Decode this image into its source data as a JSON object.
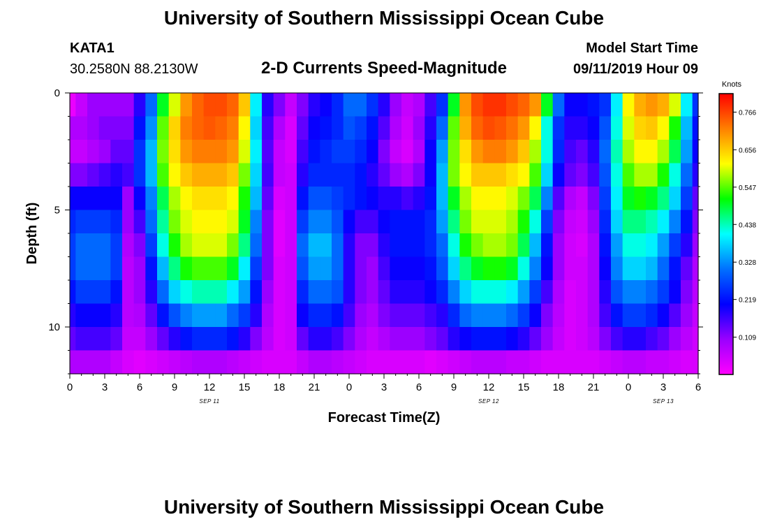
{
  "header": {
    "title": "University of Southern Mississippi Ocean Cube",
    "station_id": "KATA1",
    "coordinates": "30.2580N 88.2130W",
    "plot_title": "2-D Currents Speed-Magnitude",
    "model_start_label": "Model Start Time",
    "model_start_value": "09/11/2019 Hour 09"
  },
  "footer": {
    "title": "University of Southern Mississippi Ocean Cube"
  },
  "colors": {
    "background": "#ffffff",
    "axis": "#000000"
  },
  "chart_data": {
    "type": "heatmap",
    "title": "2-D Currents Speed-Magnitude",
    "xlabel": "Forecast Time(Z)",
    "ylabel": "Depth (ft)",
    "units": "Knots",
    "x_range_hours": [
      0,
      54
    ],
    "y_range_ft": [
      0,
      12
    ],
    "y_inverted": true,
    "x_tick_labels": [
      "0",
      "3",
      "6",
      "9",
      "12",
      "15",
      "18",
      "21",
      "0",
      "3",
      "6",
      "9",
      "12",
      "15",
      "18",
      "21",
      "0",
      "3",
      "6"
    ],
    "y_tick_labels": [
      "0",
      "5",
      "10"
    ],
    "y_tick_values": [
      0,
      5,
      10
    ],
    "date_labels": [
      {
        "text": "SEP 11",
        "hour": 12
      },
      {
        "text": "SEP 12",
        "hour": 36
      },
      {
        "text": "SEP 13",
        "hour": 51
      }
    ],
    "colorbar": {
      "min": 0.0,
      "max": 0.82,
      "tick_labels": [
        "0.766",
        "0.656",
        "0.547",
        "0.438",
        "0.328",
        "0.219",
        "0.109"
      ],
      "tick_values": [
        0.766,
        0.656,
        0.547,
        0.438,
        0.328,
        0.219,
        0.109
      ],
      "colormap": [
        "#ff00ff",
        "#9a00ff",
        "#0000ff",
        "#0070ff",
        "#00ffff",
        "#00ff00",
        "#ffff00",
        "#ff8000",
        "#ff0000"
      ]
    },
    "depth_levels_ft": [
      0.5,
      1.5,
      2.5,
      3.5,
      4.5,
      5.5,
      6.5,
      7.5,
      8.5,
      9.5,
      10.5,
      11.5
    ],
    "time_hours": [
      0,
      1,
      2,
      3,
      4,
      5,
      6,
      7,
      8,
      9,
      10,
      11,
      12,
      13,
      14,
      15,
      16,
      17,
      18,
      19,
      20,
      21,
      22,
      23,
      24,
      25,
      26,
      27,
      28,
      29,
      30,
      31,
      32,
      33,
      34,
      35,
      36,
      37,
      38,
      39,
      40,
      41,
      42,
      43,
      44,
      45,
      46,
      47,
      48,
      49,
      50,
      51,
      52,
      53,
      54
    ],
    "series": [
      {
        "name": "depth 0.5 ft",
        "values": [
          0.02,
          0.06,
          0.1,
          0.1,
          0.1,
          0.1,
          0.18,
          0.3,
          0.5,
          0.6,
          0.7,
          0.74,
          0.76,
          0.76,
          0.74,
          0.66,
          0.4,
          0.18,
          0.12,
          0.06,
          0.12,
          0.18,
          0.2,
          0.24,
          0.3,
          0.3,
          0.25,
          0.18,
          0.1,
          0.06,
          0.08,
          0.16,
          0.25,
          0.5,
          0.7,
          0.76,
          0.78,
          0.78,
          0.76,
          0.74,
          0.7,
          0.5,
          0.3,
          0.2,
          0.2,
          0.22,
          0.25,
          0.4,
          0.62,
          0.68,
          0.7,
          0.68,
          0.6,
          0.4,
          0.25
        ]
      },
      {
        "name": "depth 1.5 ft",
        "values": [
          0.08,
          0.08,
          0.1,
          0.12,
          0.12,
          0.12,
          0.22,
          0.33,
          0.55,
          0.65,
          0.72,
          0.74,
          0.75,
          0.74,
          0.72,
          0.62,
          0.38,
          0.16,
          0.08,
          0.04,
          0.14,
          0.2,
          0.22,
          0.24,
          0.28,
          0.26,
          0.22,
          0.15,
          0.08,
          0.05,
          0.1,
          0.18,
          0.3,
          0.55,
          0.68,
          0.74,
          0.76,
          0.75,
          0.73,
          0.7,
          0.62,
          0.42,
          0.25,
          0.18,
          0.18,
          0.2,
          0.28,
          0.42,
          0.6,
          0.65,
          0.66,
          0.62,
          0.52,
          0.36,
          0.22
        ]
      },
      {
        "name": "depth 2.5 ft",
        "values": [
          0.06,
          0.06,
          0.08,
          0.1,
          0.14,
          0.14,
          0.25,
          0.36,
          0.56,
          0.64,
          0.7,
          0.72,
          0.72,
          0.72,
          0.7,
          0.6,
          0.4,
          0.15,
          0.06,
          0.04,
          0.16,
          0.22,
          0.24,
          0.26,
          0.26,
          0.24,
          0.2,
          0.12,
          0.06,
          0.04,
          0.08,
          0.2,
          0.34,
          0.56,
          0.64,
          0.7,
          0.72,
          0.72,
          0.7,
          0.66,
          0.58,
          0.42,
          0.24,
          0.16,
          0.14,
          0.18,
          0.3,
          0.44,
          0.58,
          0.62,
          0.62,
          0.58,
          0.48,
          0.34,
          0.2
        ]
      },
      {
        "name": "depth 3.5 ft",
        "values": [
          0.12,
          0.12,
          0.14,
          0.16,
          0.18,
          0.16,
          0.25,
          0.36,
          0.54,
          0.62,
          0.66,
          0.68,
          0.68,
          0.68,
          0.66,
          0.56,
          0.38,
          0.16,
          0.06,
          0.05,
          0.18,
          0.24,
          0.24,
          0.24,
          0.24,
          0.22,
          0.18,
          0.14,
          0.1,
          0.08,
          0.12,
          0.2,
          0.36,
          0.56,
          0.62,
          0.66,
          0.66,
          0.66,
          0.64,
          0.62,
          0.54,
          0.38,
          0.2,
          0.14,
          0.12,
          0.16,
          0.28,
          0.42,
          0.54,
          0.58,
          0.58,
          0.52,
          0.42,
          0.3,
          0.18
        ]
      },
      {
        "name": "depth 4.5 ft",
        "values": [
          0.2,
          0.2,
          0.2,
          0.2,
          0.2,
          0.1,
          0.2,
          0.32,
          0.48,
          0.58,
          0.62,
          0.64,
          0.64,
          0.64,
          0.62,
          0.52,
          0.36,
          0.14,
          0.04,
          0.05,
          0.22,
          0.28,
          0.28,
          0.26,
          0.24,
          0.22,
          0.2,
          0.18,
          0.18,
          0.16,
          0.18,
          0.22,
          0.36,
          0.5,
          0.58,
          0.62,
          0.62,
          0.62,
          0.6,
          0.56,
          0.48,
          0.32,
          0.15,
          0.08,
          0.06,
          0.12,
          0.26,
          0.4,
          0.5,
          0.52,
          0.5,
          0.46,
          0.38,
          0.26,
          0.14
        ]
      },
      {
        "name": "depth 5.5 ft",
        "values": [
          0.24,
          0.26,
          0.26,
          0.26,
          0.24,
          0.1,
          0.16,
          0.3,
          0.45,
          0.56,
          0.6,
          0.62,
          0.62,
          0.62,
          0.6,
          0.5,
          0.32,
          0.12,
          0.03,
          0.05,
          0.26,
          0.32,
          0.32,
          0.28,
          0.2,
          0.16,
          0.16,
          0.2,
          0.22,
          0.22,
          0.22,
          0.24,
          0.34,
          0.46,
          0.56,
          0.6,
          0.6,
          0.6,
          0.58,
          0.52,
          0.42,
          0.26,
          0.12,
          0.06,
          0.05,
          0.1,
          0.24,
          0.38,
          0.46,
          0.46,
          0.44,
          0.4,
          0.32,
          0.22,
          0.12
        ]
      },
      {
        "name": "depth 6.5 ft",
        "values": [
          0.26,
          0.3,
          0.3,
          0.3,
          0.26,
          0.08,
          0.12,
          0.26,
          0.42,
          0.52,
          0.58,
          0.6,
          0.6,
          0.6,
          0.56,
          0.46,
          0.3,
          0.12,
          0.03,
          0.05,
          0.3,
          0.36,
          0.36,
          0.3,
          0.18,
          0.12,
          0.12,
          0.18,
          0.22,
          0.22,
          0.22,
          0.24,
          0.3,
          0.42,
          0.52,
          0.56,
          0.58,
          0.58,
          0.56,
          0.48,
          0.36,
          0.22,
          0.1,
          0.05,
          0.04,
          0.08,
          0.22,
          0.34,
          0.42,
          0.42,
          0.4,
          0.34,
          0.26,
          0.18,
          0.1
        ]
      },
      {
        "name": "depth 7.5 ft",
        "values": [
          0.26,
          0.3,
          0.3,
          0.3,
          0.26,
          0.07,
          0.1,
          0.22,
          0.36,
          0.46,
          0.52,
          0.54,
          0.54,
          0.54,
          0.5,
          0.4,
          0.26,
          0.12,
          0.04,
          0.05,
          0.28,
          0.34,
          0.34,
          0.3,
          0.18,
          0.12,
          0.1,
          0.16,
          0.2,
          0.2,
          0.2,
          0.22,
          0.28,
          0.38,
          0.46,
          0.5,
          0.52,
          0.52,
          0.5,
          0.42,
          0.32,
          0.2,
          0.1,
          0.05,
          0.05,
          0.08,
          0.2,
          0.32,
          0.38,
          0.38,
          0.36,
          0.3,
          0.22,
          0.14,
          0.08
        ]
      },
      {
        "name": "depth 8.5 ft",
        "values": [
          0.22,
          0.26,
          0.26,
          0.26,
          0.22,
          0.07,
          0.1,
          0.18,
          0.3,
          0.38,
          0.42,
          0.44,
          0.44,
          0.44,
          0.4,
          0.34,
          0.22,
          0.1,
          0.04,
          0.05,
          0.24,
          0.3,
          0.3,
          0.28,
          0.18,
          0.12,
          0.1,
          0.14,
          0.18,
          0.18,
          0.18,
          0.2,
          0.24,
          0.32,
          0.38,
          0.42,
          0.42,
          0.42,
          0.4,
          0.34,
          0.26,
          0.16,
          0.08,
          0.04,
          0.05,
          0.08,
          0.18,
          0.28,
          0.32,
          0.32,
          0.3,
          0.26,
          0.2,
          0.12,
          0.07
        ]
      },
      {
        "name": "depth 9.5 ft",
        "values": [
          0.18,
          0.2,
          0.2,
          0.2,
          0.18,
          0.07,
          0.08,
          0.14,
          0.22,
          0.28,
          0.32,
          0.34,
          0.34,
          0.34,
          0.3,
          0.26,
          0.18,
          0.08,
          0.04,
          0.05,
          0.2,
          0.24,
          0.24,
          0.22,
          0.16,
          0.1,
          0.08,
          0.12,
          0.14,
          0.14,
          0.14,
          0.16,
          0.18,
          0.24,
          0.3,
          0.32,
          0.32,
          0.32,
          0.3,
          0.26,
          0.2,
          0.12,
          0.07,
          0.04,
          0.05,
          0.08,
          0.16,
          0.22,
          0.26,
          0.26,
          0.24,
          0.2,
          0.15,
          0.1,
          0.06
        ]
      },
      {
        "name": "depth 10.5 ft",
        "values": [
          0.14,
          0.16,
          0.16,
          0.16,
          0.14,
          0.06,
          0.06,
          0.1,
          0.14,
          0.18,
          0.22,
          0.24,
          0.24,
          0.24,
          0.22,
          0.18,
          0.12,
          0.07,
          0.04,
          0.05,
          0.14,
          0.18,
          0.18,
          0.16,
          0.12,
          0.08,
          0.06,
          0.08,
          0.1,
          0.1,
          0.1,
          0.12,
          0.14,
          0.18,
          0.2,
          0.22,
          0.22,
          0.22,
          0.2,
          0.18,
          0.14,
          0.1,
          0.06,
          0.04,
          0.05,
          0.07,
          0.12,
          0.16,
          0.18,
          0.18,
          0.16,
          0.14,
          0.1,
          0.07,
          0.05
        ]
      },
      {
        "name": "depth 11.5 ft",
        "values": [
          0.08,
          0.08,
          0.08,
          0.08,
          0.06,
          0.04,
          0.03,
          0.04,
          0.05,
          0.06,
          0.07,
          0.08,
          0.08,
          0.08,
          0.07,
          0.06,
          0.05,
          0.04,
          0.04,
          0.04,
          0.06,
          0.08,
          0.08,
          0.07,
          0.06,
          0.05,
          0.04,
          0.04,
          0.04,
          0.04,
          0.04,
          0.03,
          0.04,
          0.05,
          0.06,
          0.07,
          0.07,
          0.07,
          0.06,
          0.06,
          0.05,
          0.04,
          0.04,
          0.04,
          0.04,
          0.04,
          0.05,
          0.06,
          0.07,
          0.07,
          0.06,
          0.06,
          0.05,
          0.04,
          0.04
        ]
      }
    ]
  }
}
